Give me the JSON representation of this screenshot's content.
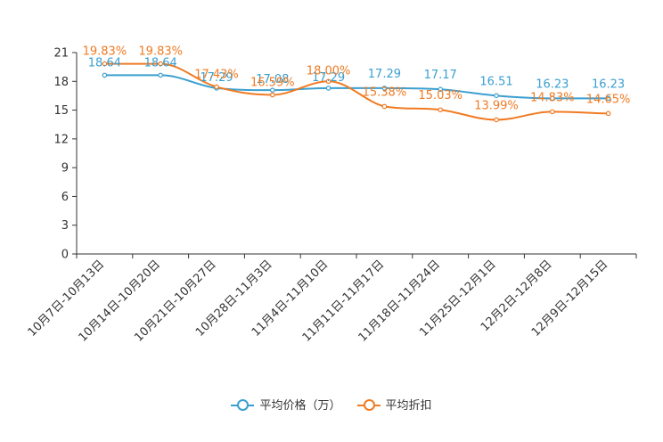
{
  "chart_data": {
    "type": "line",
    "title": "",
    "xlabel": "",
    "ylabel": "",
    "ylim": [
      0,
      21
    ],
    "yticks": [
      0,
      3,
      6,
      9,
      12,
      15,
      18,
      21
    ],
    "grid": false,
    "legend_position": "bottom-center",
    "categories": [
      "10月7日-10月13日",
      "10月14日-10月20日",
      "10月21日-10月27日",
      "10月28日-11月3日",
      "11月4日-11月10日",
      "11月11日-11月17日",
      "11月18日-11月24日",
      "11月25日-12月1日",
      "12月2日-12月8日",
      "12月9日-12月15日"
    ],
    "series": [
      {
        "name": "平均价格（万）",
        "color": "#3a9fd0",
        "values": [
          18.64,
          18.64,
          17.29,
          17.08,
          17.29,
          17.29,
          17.17,
          16.51,
          16.23,
          16.23
        ],
        "labels": [
          "18.64",
          "18.64",
          "17.29",
          "17.08",
          "17.29",
          "17.29",
          "17.17",
          "16.51",
          "16.23",
          "16.23"
        ]
      },
      {
        "name": "平均折扣",
        "color": "#f07a22",
        "values": [
          19.83,
          19.83,
          17.43,
          16.59,
          18.0,
          15.38,
          15.03,
          13.99,
          14.83,
          14.65
        ],
        "labels": [
          "19.83%",
          "19.83%",
          "17.43%",
          "16.59%",
          "18.00%",
          "15.38%",
          "15.03%",
          "13.99%",
          "14.83%",
          "14.65%"
        ]
      }
    ]
  }
}
